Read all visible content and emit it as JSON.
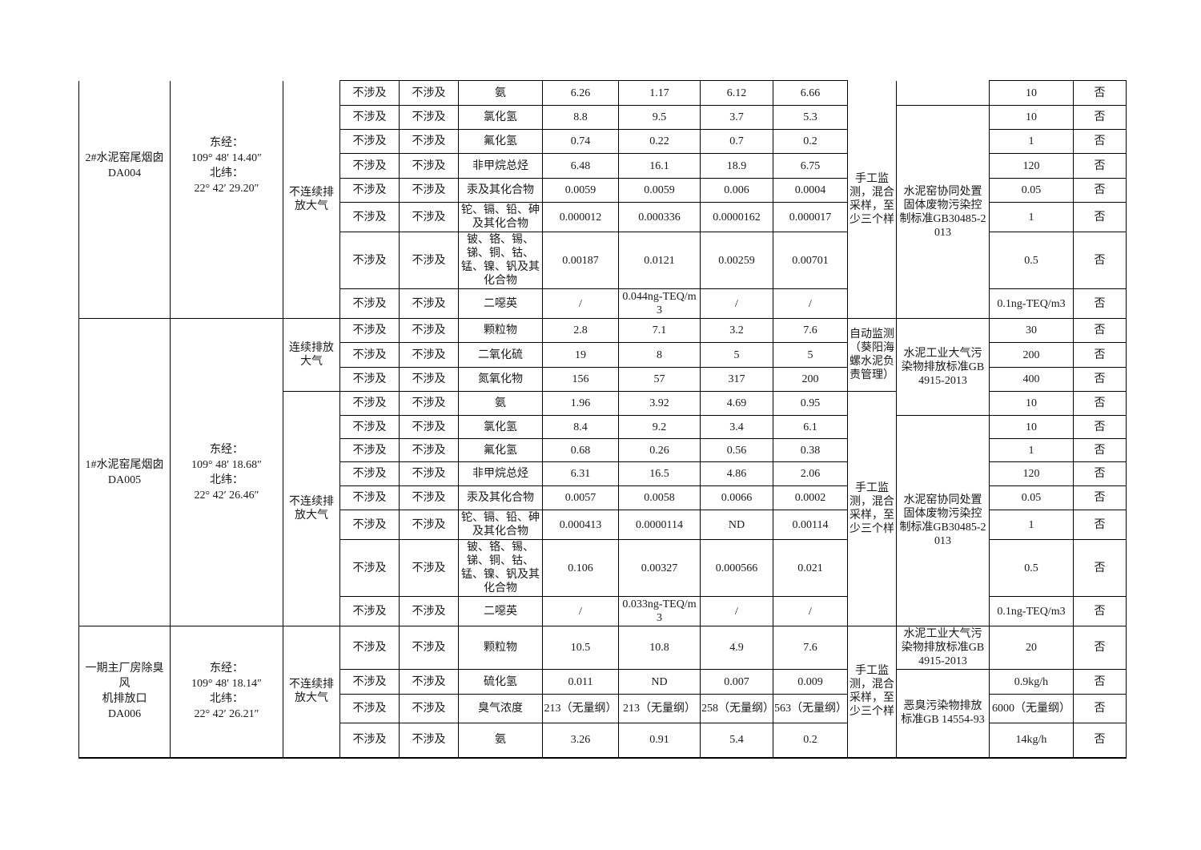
{
  "page": {
    "background": "#ffffff",
    "text_color": "#1a1a1a",
    "border_color": "#000000",
    "language": "zh-CN",
    "note": "页面为表格续页：首行上方单元格从上一页延续"
  },
  "table": {
    "sections": [
      {
        "outlet_id": "DA004",
        "continued": true,
        "outlet_lines": [
          "2#水泥窑尾烟囱",
          "DA004"
        ],
        "coordinate_lines": [
          "东经：",
          "109° 48′ 14.40″",
          "北纬：",
          "22° 42′ 29.20″"
        ],
        "discharge_modes": [
          {
            "label": "不连续排放大气",
            "rows": 8,
            "continued": true
          }
        ],
        "monitoring": [
          {
            "label": "手工监测，混合采样，至少三个样",
            "rows": 8,
            "continued": true
          }
        ],
        "standards": [
          {
            "label": "",
            "rows": 1,
            "continued": true
          },
          {
            "label": "水泥窑协同处置固体废物污染控制标准GB30485-2013",
            "rows": 7
          }
        ],
        "rows": [
          {
            "na": [
              "不涉及",
              "不涉及"
            ],
            "pollutant": "氨",
            "values": [
              "6.26",
              "1.17",
              "6.12",
              "6.66"
            ],
            "limit": "10",
            "exceed": "否"
          },
          {
            "na": [
              "不涉及",
              "不涉及"
            ],
            "pollutant": "氯化氢",
            "values": [
              "8.8",
              "9.5",
              "3.7",
              "5.3"
            ],
            "limit": "10",
            "exceed": "否"
          },
          {
            "na": [
              "不涉及",
              "不涉及"
            ],
            "pollutant": "氟化氢",
            "values": [
              "0.74",
              "0.22",
              "0.7",
              "0.2"
            ],
            "limit": "1",
            "exceed": "否"
          },
          {
            "na": [
              "不涉及",
              "不涉及"
            ],
            "pollutant": "非甲烷总烃",
            "values": [
              "6.48",
              "16.1",
              "18.9",
              "6.75"
            ],
            "limit": "120",
            "exceed": "否"
          },
          {
            "na": [
              "不涉及",
              "不涉及"
            ],
            "pollutant": "汞及其化合物",
            "values": [
              "0.0059",
              "0.0059",
              "0.006",
              "0.0004"
            ],
            "limit": "0.05",
            "exceed": "否"
          },
          {
            "na": [
              "不涉及",
              "不涉及"
            ],
            "pollutant": "铊、镉、铅、砷及其化合物",
            "values": [
              "0.000012",
              "0.000336",
              "0.0000162",
              "0.000017"
            ],
            "limit": "1",
            "exceed": "否"
          },
          {
            "na": [
              "不涉及",
              "不涉及"
            ],
            "pollutant": "铍、铬、锡、锑、铜、钴、锰、镍、钒及其化合物",
            "values": [
              "0.00187",
              "0.0121",
              "0.00259",
              "0.00701"
            ],
            "limit": "0.5",
            "exceed": "否"
          },
          {
            "na": [
              "不涉及",
              "不涉及"
            ],
            "pollutant": "二噁英",
            "values": [
              "/",
              "0.044ng-TEQ/m3",
              "/",
              "/"
            ],
            "limit": "0.1ng-TEQ/m3",
            "exceed": "否"
          }
        ]
      },
      {
        "outlet_id": "DA005",
        "continued": false,
        "outlet_lines": [
          "1#水泥窑尾烟囱",
          "DA005"
        ],
        "coordinate_lines": [
          "东经：",
          "109° 48′ 18.68″",
          "北纬：",
          "22° 42′ 26.46″"
        ],
        "discharge_modes": [
          {
            "label": "连续排放大气",
            "rows": 3
          },
          {
            "label": "不连续排放大气",
            "rows": 8
          }
        ],
        "monitoring": [
          {
            "label": "自动监测（葵阳海螺水泥负责管理）",
            "rows": 3
          },
          {
            "label": "手工监测，混合采样，至少三个样",
            "rows": 8
          }
        ],
        "standards": [
          {
            "label": "水泥工业大气污染物排放标准GB 4915-2013",
            "rows": 4
          },
          {
            "label": "水泥窑协同处置固体废物污染控制标准GB30485-2013",
            "rows": 7
          }
        ],
        "rows": [
          {
            "na": [
              "不涉及",
              "不涉及"
            ],
            "pollutant": "颗粒物",
            "values": [
              "2.8",
              "7.1",
              "3.2",
              "7.6"
            ],
            "limit": "30",
            "exceed": "否"
          },
          {
            "na": [
              "不涉及",
              "不涉及"
            ],
            "pollutant": "二氧化硫",
            "values": [
              "19",
              "8",
              "5",
              "5"
            ],
            "limit": "200",
            "exceed": "否"
          },
          {
            "na": [
              "不涉及",
              "不涉及"
            ],
            "pollutant": "氮氧化物",
            "values": [
              "156",
              "57",
              "317",
              "200"
            ],
            "limit": "400",
            "exceed": "否"
          },
          {
            "na": [
              "不涉及",
              "不涉及"
            ],
            "pollutant": "氨",
            "values": [
              "1.96",
              "3.92",
              "4.69",
              "0.95"
            ],
            "limit": "10",
            "exceed": "否"
          },
          {
            "na": [
              "不涉及",
              "不涉及"
            ],
            "pollutant": "氯化氢",
            "values": [
              "8.4",
              "9.2",
              "3.4",
              "6.1"
            ],
            "limit": "10",
            "exceed": "否"
          },
          {
            "na": [
              "不涉及",
              "不涉及"
            ],
            "pollutant": "氟化氢",
            "values": [
              "0.68",
              "0.26",
              "0.56",
              "0.38"
            ],
            "limit": "1",
            "exceed": "否"
          },
          {
            "na": [
              "不涉及",
              "不涉及"
            ],
            "pollutant": "非甲烷总烃",
            "values": [
              "6.31",
              "16.5",
              "4.86",
              "2.06"
            ],
            "limit": "120",
            "exceed": "否"
          },
          {
            "na": [
              "不涉及",
              "不涉及"
            ],
            "pollutant": "汞及其化合物",
            "values": [
              "0.0057",
              "0.0058",
              "0.0066",
              "0.0002"
            ],
            "limit": "0.05",
            "exceed": "否"
          },
          {
            "na": [
              "不涉及",
              "不涉及"
            ],
            "pollutant": "铊、镉、铅、砷及其化合物",
            "values": [
              "0.000413",
              "0.0000114",
              "ND",
              "0.00114"
            ],
            "limit": "1",
            "exceed": "否"
          },
          {
            "na": [
              "不涉及",
              "不涉及"
            ],
            "pollutant": "铍、铬、锡、锑、铜、钴、锰、镍、钒及其化合物",
            "values": [
              "0.106",
              "0.00327",
              "0.000566",
              "0.021"
            ],
            "limit": "0.5",
            "exceed": "否"
          },
          {
            "na": [
              "不涉及",
              "不涉及"
            ],
            "pollutant": "二噁英",
            "values": [
              "/",
              "0.033ng-TEQ/m3",
              "/",
              "/"
            ],
            "limit": "0.1ng-TEQ/m3",
            "exceed": "否"
          }
        ]
      },
      {
        "outlet_id": "DA006",
        "continued": false,
        "outlet_lines": [
          "一期主厂房除臭风",
          "机排放口",
          "DA006"
        ],
        "coordinate_lines": [
          "东经：",
          "109° 48′ 18.14″",
          "北纬：",
          "22° 42′ 26.21″"
        ],
        "discharge_modes": [
          {
            "label": "不连续排放大气",
            "rows": 4
          }
        ],
        "monitoring": [
          {
            "label": "手工监测，混合采样，至少三个样",
            "rows": 4
          }
        ],
        "standards": [
          {
            "label": "水泥工业大气污染物排放标准GB 4915-2013",
            "rows": 1
          },
          {
            "label": "恶臭污染物排放标准GB 14554-93",
            "rows": 3
          }
        ],
        "rows": [
          {
            "na": [
              "不涉及",
              "不涉及"
            ],
            "pollutant": "颗粒物",
            "values": [
              "10.5",
              "10.8",
              "4.9",
              "7.6"
            ],
            "limit": "20",
            "exceed": "否"
          },
          {
            "na": [
              "不涉及",
              "不涉及"
            ],
            "pollutant": "硫化氢",
            "values": [
              "0.011",
              "ND",
              "0.007",
              "0.009"
            ],
            "limit": "0.9kg/h",
            "exceed": "否"
          },
          {
            "na": [
              "不涉及",
              "不涉及"
            ],
            "pollutant": "臭气浓度",
            "values": [
              "213（无量纲）",
              "213（无量纲）",
              "258（无量纲）",
              "563（无量纲）"
            ],
            "limit": "6000（无量纲）",
            "exceed": "否"
          },
          {
            "na": [
              "不涉及",
              "不涉及"
            ],
            "pollutant": "氨",
            "values": [
              "3.26",
              "0.91",
              "5.4",
              "0.2"
            ],
            "limit": "14kg/h",
            "exceed": "否"
          }
        ]
      }
    ]
  }
}
